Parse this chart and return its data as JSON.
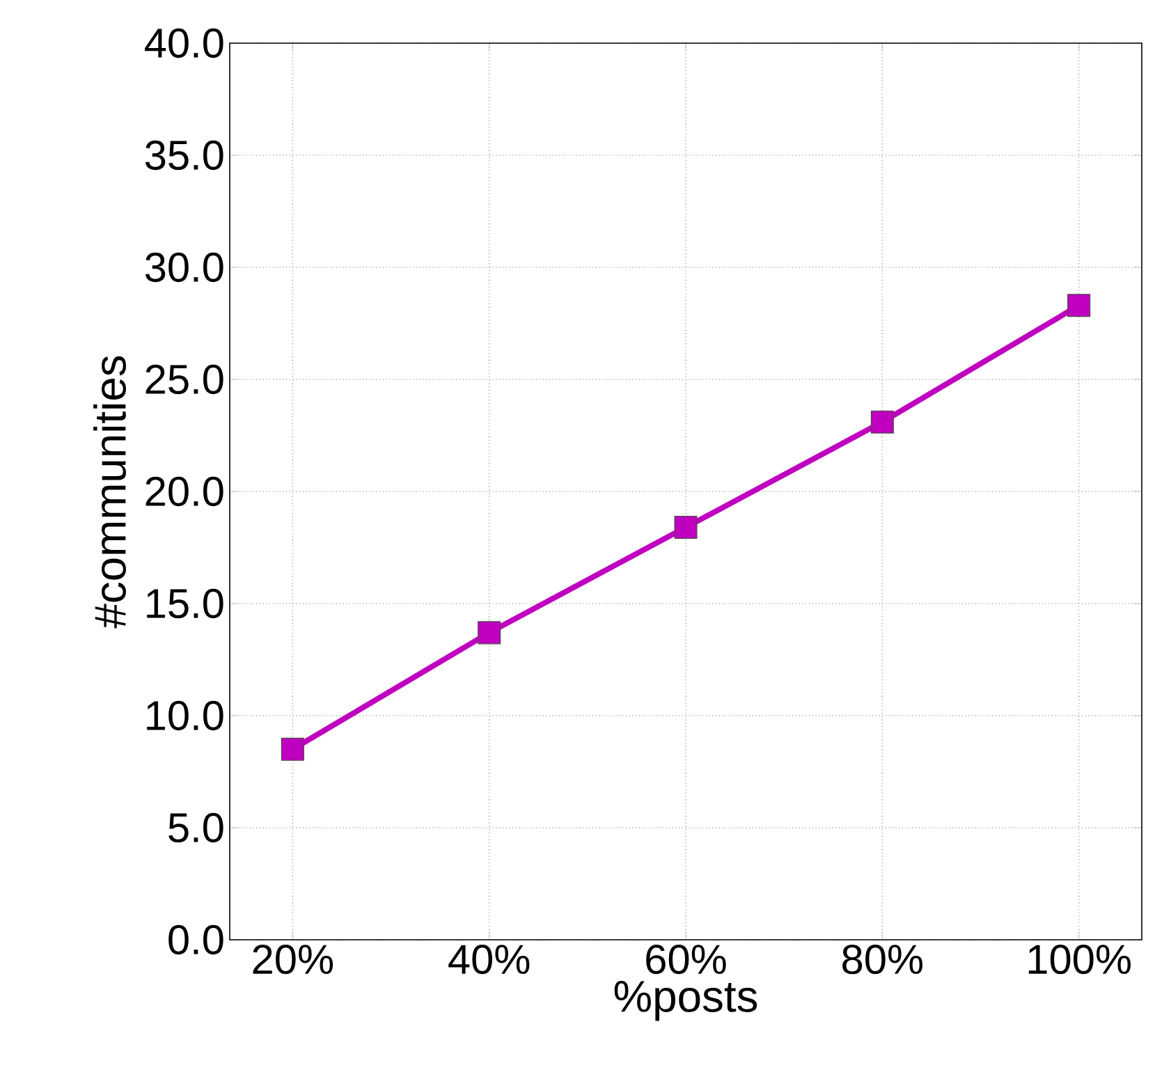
{
  "chart_data": {
    "type": "line",
    "xlabel": "%posts",
    "ylabel": "#communities",
    "categories": [
      "20%",
      "40%",
      "60%",
      "80%",
      "100%"
    ],
    "series": [
      {
        "color": "#c000c0",
        "values": [
          8.5,
          13.7,
          18.4,
          23.1,
          28.3
        ]
      }
    ],
    "ylim": [
      0,
      40
    ],
    "yticks": [
      {
        "value": 0,
        "label": "0.0"
      },
      {
        "value": 5,
        "label": "5.0"
      },
      {
        "value": 10,
        "label": "10.0"
      },
      {
        "value": 15,
        "label": "15.0"
      },
      {
        "value": 20,
        "label": "20.0"
      },
      {
        "value": 25,
        "label": "25.0"
      },
      {
        "value": 30,
        "label": "30.0"
      },
      {
        "value": 35,
        "label": "35.0"
      },
      {
        "value": 40,
        "label": "40.0"
      }
    ],
    "grid": true,
    "marker": "square",
    "line_style": "solid"
  }
}
